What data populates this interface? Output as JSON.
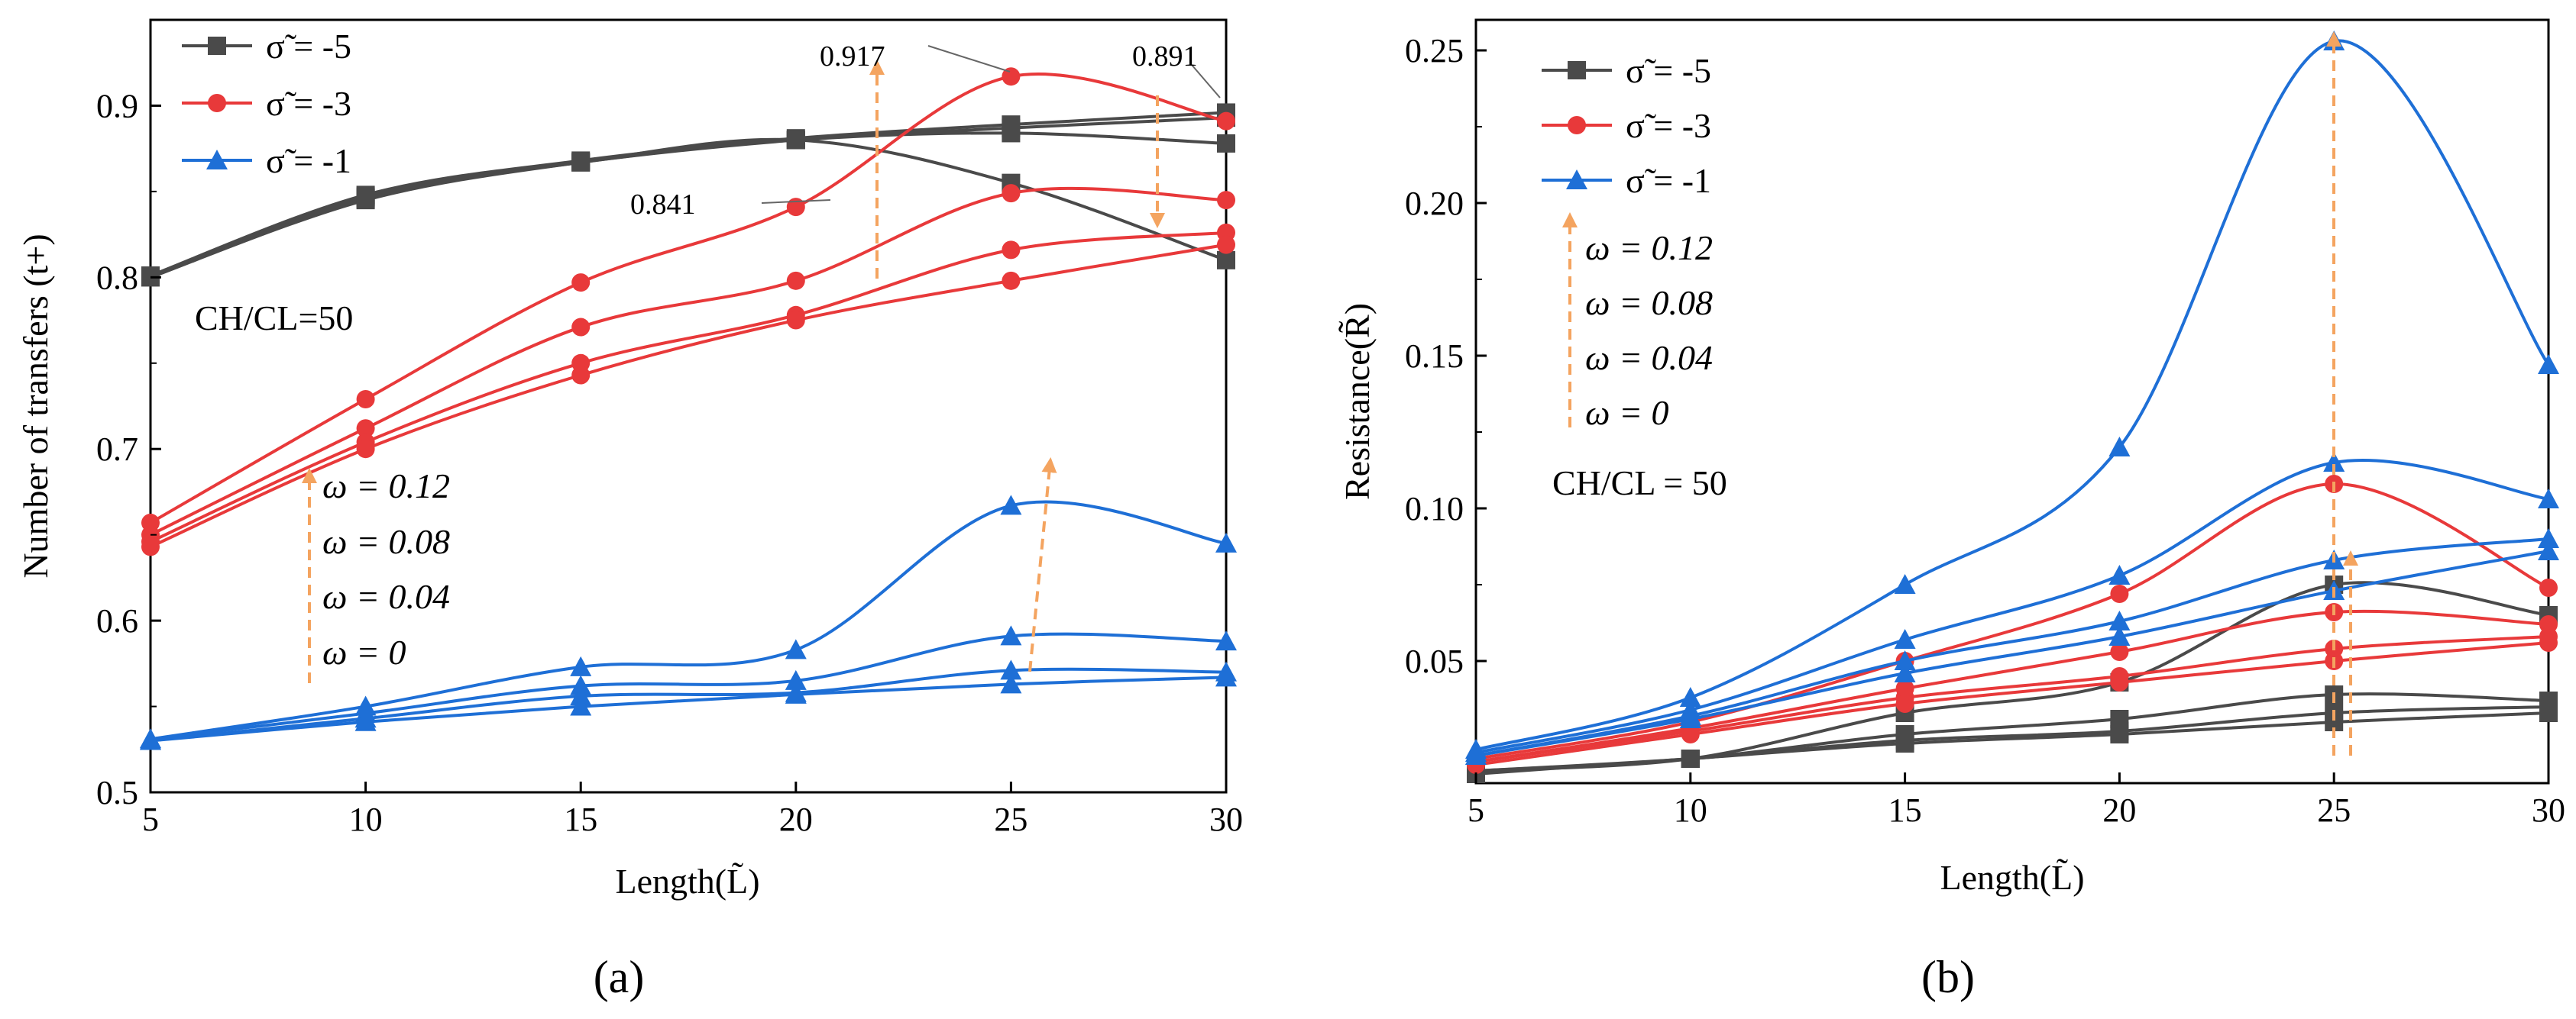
{
  "colors": {
    "black": "#4a4a4a",
    "red": "#e8393a",
    "blue": "#1e6fd6",
    "arrow": "#f4a460"
  },
  "chart_data": [
    {
      "type": "line",
      "panel_label": "(a)",
      "xlabel": "Length(L̃)",
      "ylabel": "Number of transfers (t+)",
      "x": [
        5,
        10,
        15,
        20,
        25,
        30
      ],
      "xlim": [
        5,
        30
      ],
      "ylim": [
        0.5,
        0.95
      ],
      "xticks": [
        "5",
        "10",
        "15",
        "20",
        "25",
        "30"
      ],
      "yticks": [
        "0.5",
        "0.6",
        "0.7",
        "0.8",
        "0.9"
      ],
      "ratio_label": "CH/CL=50",
      "legend": [
        {
          "name": "σ̃ = -5",
          "color": "black",
          "marker": "square"
        },
        {
          "name": "σ̃ = -3",
          "color": "red",
          "marker": "circle"
        },
        {
          "name": "σ̃ = -1",
          "color": "blue",
          "marker": "triangle"
        }
      ],
      "omega_labels": [
        "ω = 0.12",
        "ω = 0.08",
        "ω = 0.04",
        "ω = 0"
      ],
      "value_labels": [
        "0.917",
        "0.891",
        "0.841"
      ],
      "series": [
        {
          "sigma": -5,
          "omega": 0.12,
          "color": "black",
          "marker": "square",
          "values": [
            0.8,
            0.845,
            0.867,
            0.88,
            0.855,
            0.81
          ]
        },
        {
          "sigma": -5,
          "omega": 0.08,
          "color": "black",
          "marker": "square",
          "values": [
            0.8,
            0.846,
            0.867,
            0.88,
            0.884,
            0.878
          ]
        },
        {
          "sigma": -5,
          "omega": 0.04,
          "color": "black",
          "marker": "square",
          "values": [
            0.801,
            0.847,
            0.867,
            0.88,
            0.887,
            0.893
          ]
        },
        {
          "sigma": -5,
          "omega": 0,
          "color": "black",
          "marker": "square",
          "values": [
            0.801,
            0.848,
            0.868,
            0.881,
            0.889,
            0.896
          ]
        },
        {
          "sigma": -3,
          "omega": 0.12,
          "color": "red",
          "marker": "circle",
          "values": [
            0.657,
            0.729,
            0.797,
            0.841,
            0.917,
            0.891
          ]
        },
        {
          "sigma": -3,
          "omega": 0.08,
          "color": "red",
          "marker": "circle",
          "values": [
            0.65,
            0.712,
            0.771,
            0.798,
            0.849,
            0.845
          ]
        },
        {
          "sigma": -3,
          "omega": 0.04,
          "color": "red",
          "marker": "circle",
          "values": [
            0.646,
            0.704,
            0.75,
            0.778,
            0.816,
            0.826
          ]
        },
        {
          "sigma": -3,
          "omega": 0,
          "color": "red",
          "marker": "circle",
          "values": [
            0.643,
            0.7,
            0.743,
            0.775,
            0.798,
            0.819
          ]
        },
        {
          "sigma": -1,
          "omega": 0.12,
          "color": "blue",
          "marker": "triangle",
          "values": [
            0.531,
            0.55,
            0.573,
            0.583,
            0.667,
            0.645
          ]
        },
        {
          "sigma": -1,
          "omega": 0.08,
          "color": "blue",
          "marker": "triangle",
          "values": [
            0.531,
            0.546,
            0.562,
            0.565,
            0.591,
            0.588
          ]
        },
        {
          "sigma": -1,
          "omega": 0.04,
          "color": "blue",
          "marker": "triangle",
          "values": [
            0.53,
            0.543,
            0.556,
            0.558,
            0.571,
            0.57
          ]
        },
        {
          "sigma": -1,
          "omega": 0,
          "color": "blue",
          "marker": "triangle",
          "values": [
            0.53,
            0.541,
            0.55,
            0.557,
            0.563,
            0.567
          ]
        }
      ]
    },
    {
      "type": "line",
      "panel_label": "(b)",
      "xlabel": "Length(L̃)",
      "ylabel": "Resistance(R̃)",
      "x": [
        5,
        10,
        15,
        20,
        25,
        30
      ],
      "xlim": [
        5,
        30
      ],
      "ylim": [
        0.01,
        0.26
      ],
      "xticks": [
        "5",
        "10",
        "15",
        "20",
        "25",
        "30"
      ],
      "yticks": [
        "0.05",
        "0.10",
        "0.15",
        "0.20",
        "0.25"
      ],
      "ratio_label": "CH/CL = 50",
      "legend": [
        {
          "name": "σ̃ = -5",
          "color": "black",
          "marker": "square"
        },
        {
          "name": "σ̃ = -3",
          "color": "red",
          "marker": "circle"
        },
        {
          "name": "σ̃ = -1",
          "color": "blue",
          "marker": "triangle"
        }
      ],
      "omega_labels": [
        "ω = 0.12",
        "ω = 0.08",
        "ω = 0.04",
        "ω = 0"
      ],
      "series": [
        {
          "sigma": -5,
          "omega": 0.12,
          "color": "black",
          "marker": "square",
          "values": [
            0.014,
            0.018,
            0.033,
            0.043,
            0.075,
            0.065
          ]
        },
        {
          "sigma": -5,
          "omega": 0.08,
          "color": "black",
          "marker": "square",
          "values": [
            0.014,
            0.018,
            0.026,
            0.031,
            0.039,
            0.037
          ]
        },
        {
          "sigma": -5,
          "omega": 0.04,
          "color": "black",
          "marker": "square",
          "values": [
            0.014,
            0.018,
            0.024,
            0.027,
            0.033,
            0.035
          ]
        },
        {
          "sigma": -5,
          "omega": 0,
          "color": "black",
          "marker": "square",
          "values": [
            0.013,
            0.018,
            0.023,
            0.026,
            0.03,
            0.033
          ]
        },
        {
          "sigma": -3,
          "omega": 0.12,
          "color": "red",
          "marker": "circle",
          "values": [
            0.018,
            0.03,
            0.05,
            0.072,
            0.108,
            0.074
          ]
        },
        {
          "sigma": -3,
          "omega": 0.08,
          "color": "red",
          "marker": "circle",
          "values": [
            0.017,
            0.028,
            0.041,
            0.053,
            0.066,
            0.062
          ]
        },
        {
          "sigma": -3,
          "omega": 0.04,
          "color": "red",
          "marker": "circle",
          "values": [
            0.017,
            0.027,
            0.038,
            0.045,
            0.054,
            0.058
          ]
        },
        {
          "sigma": -3,
          "omega": 0,
          "color": "red",
          "marker": "circle",
          "values": [
            0.016,
            0.026,
            0.036,
            0.043,
            0.05,
            0.056
          ]
        },
        {
          "sigma": -1,
          "omega": 0.12,
          "color": "blue",
          "marker": "triangle",
          "values": [
            0.021,
            0.038,
            0.075,
            0.12,
            0.253,
            0.147
          ]
        },
        {
          "sigma": -1,
          "omega": 0.08,
          "color": "blue",
          "marker": "triangle",
          "values": [
            0.02,
            0.034,
            0.057,
            0.078,
            0.115,
            0.103
          ]
        },
        {
          "sigma": -1,
          "omega": 0.04,
          "color": "blue",
          "marker": "triangle",
          "values": [
            0.019,
            0.032,
            0.05,
            0.063,
            0.083,
            0.09
          ]
        },
        {
          "sigma": -1,
          "omega": 0,
          "color": "blue",
          "marker": "triangle",
          "values": [
            0.019,
            0.031,
            0.046,
            0.058,
            0.073,
            0.086
          ]
        }
      ]
    }
  ]
}
